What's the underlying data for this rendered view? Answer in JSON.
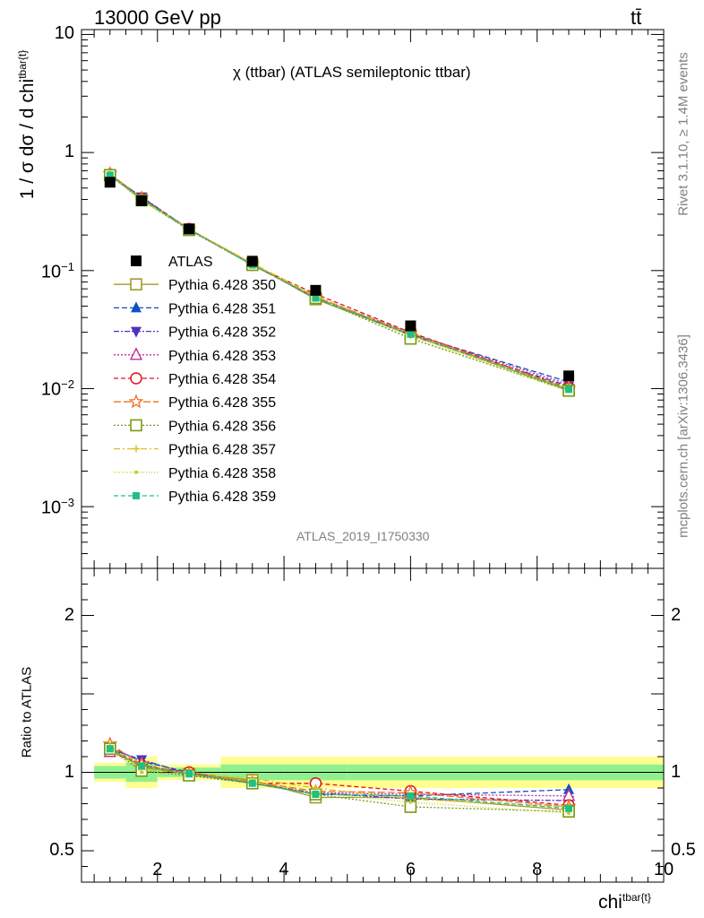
{
  "header": {
    "energy": "13000 GeV pp",
    "process": "tt̄",
    "title": "χ (ttbar) (ATLAS semileptonic ttbar)",
    "analysis": "ATLAS_2019_I1750330",
    "rivet": "Rivet 3.1.10, ≥ 1.4M events",
    "source": "mcplots.cern.ch [arXiv:1306.3436]"
  },
  "top": {
    "ylabel_main": "1 / σ dσ / d chi",
    "ylabel_sup": "tbar{t}",
    "scale": "log",
    "ylim": [
      0.0003,
      11
    ],
    "ticks": [
      {
        "v": 10,
        "base": "10",
        "exp": ""
      },
      {
        "v": 1,
        "base": "1",
        "exp": ""
      },
      {
        "v": 0.1,
        "base": "10",
        "exp": "−1"
      },
      {
        "v": 0.01,
        "base": "10",
        "exp": "−2"
      },
      {
        "v": 0.001,
        "base": "10",
        "exp": "−3"
      }
    ]
  },
  "ratio": {
    "ylabel": "Ratio to ATLAS",
    "ylim": [
      0.3,
      2.3
    ],
    "ticks": [
      {
        "v": 0.5,
        "label": "0.5"
      },
      {
        "v": 1,
        "label": "1"
      },
      {
        "v": 2,
        "label": "2"
      }
    ]
  },
  "xaxis": {
    "label_main": "chi",
    "label_sup": "tbar{t}",
    "xlim": [
      0.8,
      10
    ],
    "ticks": [
      {
        "v": 2,
        "label": "2"
      },
      {
        "v": 4,
        "label": "4"
      },
      {
        "v": 6,
        "label": "6"
      },
      {
        "v": 8,
        "label": "8"
      },
      {
        "v": 10,
        "label": "10"
      }
    ]
  },
  "chart_data": {
    "type": "scatter",
    "x": [
      1.25,
      1.75,
      2.5,
      3.5,
      4.5,
      6.0,
      8.5
    ],
    "bins": [
      [
        1,
        1.5
      ],
      [
        1.5,
        2
      ],
      [
        2,
        3
      ],
      [
        3,
        4
      ],
      [
        4,
        5
      ],
      [
        5,
        7
      ],
      [
        7,
        10
      ]
    ],
    "data": {
      "name": "ATLAS",
      "values": [
        0.56,
        0.39,
        0.225,
        0.12,
        0.068,
        0.034,
        0.0128
      ],
      "band_inner": [
        0.04,
        0.06,
        0.03,
        0.05,
        0.05,
        0.05,
        0.05
      ],
      "band_outer": [
        0.06,
        0.1,
        0.05,
        0.1,
        0.1,
        0.1,
        0.1
      ]
    },
    "series": [
      {
        "name": "Pythia 6.428 350",
        "color": "#a09a2a",
        "marker": "square-open",
        "dash": "",
        "ratio": [
          1.15,
          1.03,
          0.99,
          0.95,
          0.84,
          0.84,
          0.76
        ]
      },
      {
        "name": "Pythia 6.428 351",
        "color": "#1050c0",
        "marker": "triangle-up",
        "dash": "6,3",
        "ratio": [
          1.16,
          1.07,
          1.0,
          0.93,
          0.86,
          0.85,
          0.89
        ]
      },
      {
        "name": "Pythia 6.428 352",
        "color": "#5030c0",
        "marker": "triangle-down",
        "dash": "6,2,2,2",
        "ratio": [
          1.15,
          1.08,
          0.99,
          0.93,
          0.87,
          0.83,
          0.82
        ]
      },
      {
        "name": "Pythia 6.428 353",
        "color": "#c03090",
        "marker": "triangle-open",
        "dash": "2,2",
        "ratio": [
          1.13,
          1.05,
          0.98,
          0.93,
          0.87,
          0.86,
          0.85
        ]
      },
      {
        "name": "Pythia 6.428 354",
        "color": "#e01020",
        "marker": "circle-open",
        "dash": "5,3",
        "ratio": [
          1.16,
          1.04,
          1.0,
          0.93,
          0.93,
          0.88,
          0.79
        ]
      },
      {
        "name": "Pythia 6.428 355",
        "color": "#f07020",
        "marker": "star-open",
        "dash": "8,3",
        "ratio": [
          1.18,
          1.05,
          0.99,
          0.94,
          0.88,
          0.87,
          0.78
        ]
      },
      {
        "name": "Pythia 6.428 356",
        "color": "#7a9a10",
        "marker": "square-open",
        "dash": "2,2",
        "ratio": [
          1.15,
          1.01,
          0.98,
          0.93,
          0.86,
          0.78,
          0.75
        ]
      },
      {
        "name": "Pythia 6.428 357",
        "color": "#e0c020",
        "marker": "plus",
        "dash": "7,3,2,3",
        "ratio": [
          1.17,
          1.02,
          1.0,
          0.96,
          0.9,
          0.83,
          0.78
        ]
      },
      {
        "name": "Pythia 6.428 358",
        "color": "#c0d020",
        "marker": "dot",
        "dash": "1,2",
        "ratio": [
          1.14,
          1.0,
          0.99,
          0.94,
          0.87,
          0.81,
          0.74
        ]
      },
      {
        "name": "Pythia 6.428 359",
        "color": "#20c080",
        "marker": "square",
        "dash": "5,3",
        "ratio": [
          1.15,
          1.04,
          0.99,
          0.93,
          0.86,
          0.85,
          0.77
        ]
      }
    ]
  }
}
